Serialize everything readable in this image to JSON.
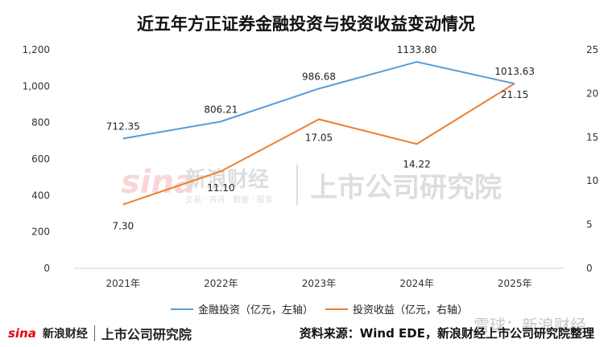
{
  "chart_data": {
    "type": "line",
    "title": "近五年方正证券金融投资与投资收益变动情况",
    "categories": [
      "2021年",
      "2022年",
      "2023年",
      "2024年",
      "2025年"
    ],
    "y_left": {
      "range": [
        0,
        1200
      ],
      "ticks": [
        "0",
        "200",
        "400",
        "600",
        "800",
        "1,000",
        "1,200"
      ],
      "tick_values": [
        0,
        200,
        400,
        600,
        800,
        1000,
        1200
      ]
    },
    "y_right": {
      "range": [
        0,
        25
      ],
      "ticks": [
        "0",
        "5",
        "10",
        "15",
        "20",
        "25"
      ],
      "tick_values": [
        0,
        5,
        10,
        15,
        20,
        25
      ]
    },
    "grid": false,
    "legend_position": "bottom",
    "series": [
      {
        "name": "金融投资（亿元，左轴）",
        "axis": "left",
        "color": "#5b9bd5",
        "values": [
          712.35,
          806.21,
          986.68,
          1133.8,
          1013.63
        ],
        "labels": [
          "712.35",
          "806.21",
          "986.68",
          "1133.80",
          "1013.63"
        ]
      },
      {
        "name": "投资收益（亿元，右轴）",
        "axis": "right",
        "color": "#ed7d31",
        "values": [
          7.3,
          11.1,
          17.05,
          14.22,
          21.15
        ],
        "labels": [
          "7.30",
          "11.10",
          "17.05",
          "14.22",
          "21.15"
        ]
      }
    ]
  },
  "footer": {
    "source": "资料来源：Wind EDE，新浪财经上市公司研究院整理",
    "brand_sina": "sina",
    "brand_sina_cn": "新浪财经",
    "brand_lab": "上市公司研究院"
  },
  "watermark": {
    "sina": "sina",
    "sina_cn": "新浪财经",
    "sina_sub": "交易 · 资讯 · 数据 · 服务",
    "lab": "上市公司研究院",
    "corner": "雪球：新浪财经"
  }
}
